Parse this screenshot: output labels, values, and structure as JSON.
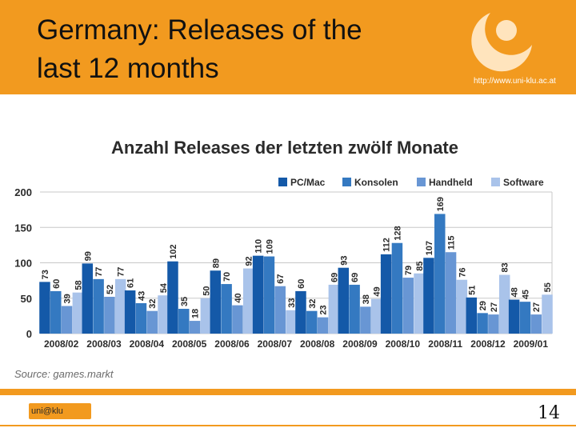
{
  "slide": {
    "title_line1": "Germany: Releases of the",
    "title_line2": "last 12 months",
    "url": "http://www.uni-klu.ac.at",
    "source": "Source: games.markt",
    "page_number": "14",
    "footer_logo_text": "uni@klu"
  },
  "colors": {
    "orange": "#f29a1f",
    "pc_mac": "#1459a8",
    "konsolen": "#3479c1",
    "handheld": "#6896d4",
    "software": "#a9c3ea"
  },
  "chart_data": {
    "type": "bar",
    "title": "Anzahl Releases der letzten zwölf Monate",
    "categories": [
      "2008/02",
      "2008/03",
      "2008/04",
      "2008/05",
      "2008/06",
      "2008/07",
      "2008/08",
      "2008/09",
      "2008/10",
      "2008/11",
      "2008/12",
      "2009/01"
    ],
    "series": [
      {
        "name": "PC/Mac",
        "values": [
          73,
          99,
          61,
          102,
          89,
          110,
          60,
          93,
          112,
          107,
          51,
          48
        ]
      },
      {
        "name": "Konsolen",
        "values": [
          60,
          77,
          43,
          35,
          70,
          109,
          32,
          69,
          128,
          169,
          29,
          45
        ]
      },
      {
        "name": "Handheld",
        "values": [
          39,
          52,
          32,
          18,
          40,
          67,
          23,
          38,
          79,
          115,
          27,
          27
        ]
      },
      {
        "name": "Software",
        "values": [
          58,
          77,
          54,
          50,
          92,
          33,
          69,
          49,
          85,
          76,
          83,
          55
        ]
      }
    ],
    "y_ticks": [
      "0",
      "50",
      "100",
      "150",
      "200"
    ],
    "ylim": [
      0,
      200
    ],
    "legend_position": "top-right",
    "grid": true
  }
}
